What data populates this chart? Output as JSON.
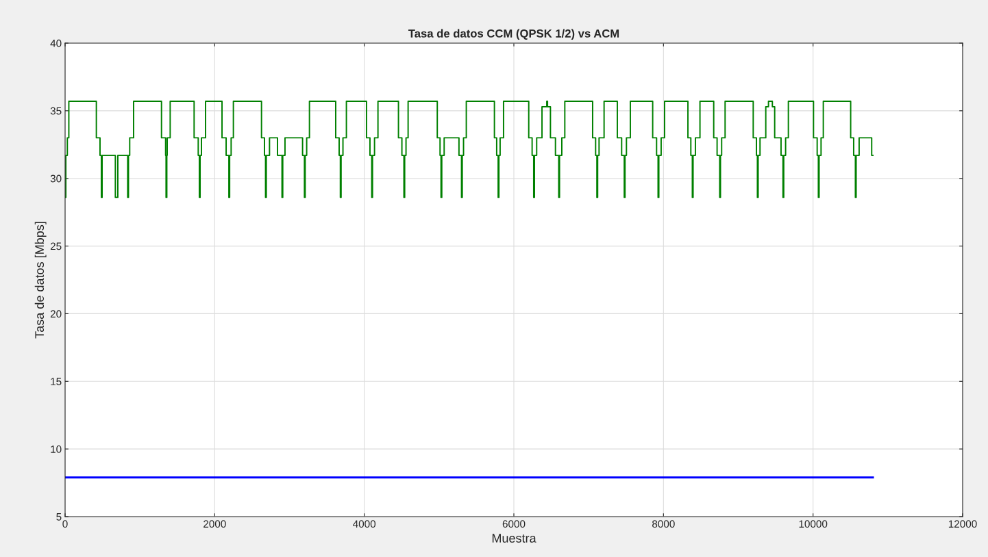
{
  "chart_data": {
    "type": "line",
    "title": "Tasa de datos CCM (QPSK 1/2) vs ACM",
    "xlabel": "Muestra",
    "ylabel": "Tasa de datos [Mbps]",
    "xlim": [
      0,
      12000
    ],
    "xticks": [
      0,
      2000,
      4000,
      6000,
      8000,
      10000,
      12000
    ],
    "ylim": [
      5,
      40
    ],
    "yticks": [
      5,
      10,
      15,
      20,
      25,
      30,
      35,
      40
    ],
    "grid": true,
    "series": [
      {
        "type": "step",
        "color": "#008000",
        "x": [
          0,
          10,
          30,
          50,
          418,
          467,
          485,
          495,
          672,
          705,
          837,
          847,
          864,
          916,
          1289,
          1344,
          1350,
          1360,
          1365,
          1405,
          1725,
          1780,
          1795,
          1805,
          1823,
          1878,
          2098,
          2153,
          2190,
          2200,
          2220,
          2250,
          2626,
          2666,
          2680,
          2690,
          2733,
          2840,
          2900,
          2910,
          2940,
          3175,
          3200,
          3210,
          3230,
          3267,
          3618,
          3664,
          3680,
          3690,
          3715,
          3761,
          4030,
          4076,
          4100,
          4110,
          4137,
          4183,
          4457,
          4503,
          4530,
          4540,
          4558,
          4586,
          4976,
          5013,
          5026,
          5036,
          5068,
          5266,
          5300,
          5310,
          5327,
          5364,
          5740,
          5770,
          5790,
          5800,
          5816,
          5862,
          6199,
          6244,
          6265,
          6275,
          6305,
          6376,
          6440,
          6450,
          6489,
          6556,
          6600,
          6610,
          6641,
          6681,
          7053,
          7093,
          7110,
          7120,
          7139,
          7206,
          7383,
          7441,
          7476,
          7486,
          7505,
          7557,
          7856,
          7908,
          7928,
          7938,
          7969,
          8015,
          8327,
          8366,
          8386,
          8396,
          8427,
          8488,
          8672,
          8717,
          8752,
          8762,
          8778,
          8824,
          9200,
          9243,
          9256,
          9266,
          9291,
          9368,
          9404,
          9456,
          9487,
          9572,
          9598,
          9608,
          9633,
          9670,
          10006,
          10055,
          10071,
          10081,
          10107,
          10137,
          10503,
          10543,
          10566,
          10576,
          10616,
          10784,
          10800
        ],
        "values": [
          28.6,
          31.7,
          33,
          35.7,
          33,
          31.7,
          28.6,
          31.7,
          28.6,
          31.7,
          28.6,
          31.7,
          33,
          35.7,
          33,
          31.7,
          28.6,
          31.7,
          33,
          35.7,
          33,
          31.7,
          28.6,
          31.7,
          33,
          35.7,
          33,
          31.7,
          28.6,
          31.7,
          33,
          35.7,
          33,
          31.7,
          28.6,
          31.7,
          33,
          31.7,
          28.6,
          31.7,
          33,
          31.7,
          28.6,
          31.7,
          33,
          35.7,
          33,
          31.7,
          28.6,
          31.7,
          33,
          35.7,
          33,
          31.7,
          28.6,
          31.7,
          33,
          35.7,
          33,
          31.7,
          28.6,
          31.7,
          33,
          35.7,
          33,
          31.7,
          28.6,
          31.7,
          33,
          31.7,
          28.6,
          31.7,
          33,
          35.7,
          33,
          31.7,
          28.6,
          31.7,
          33,
          35.7,
          33,
          31.7,
          28.6,
          31.7,
          33,
          35.3,
          35.7,
          35.3,
          33,
          31.7,
          28.6,
          31.7,
          33,
          35.7,
          33,
          31.7,
          28.6,
          31.7,
          33,
          35.7,
          33,
          31.7,
          28.6,
          31.7,
          33,
          35.7,
          33,
          31.7,
          28.6,
          31.7,
          33,
          35.7,
          33,
          31.7,
          28.6,
          31.7,
          33,
          35.7,
          33,
          31.7,
          28.6,
          31.7,
          33,
          35.7,
          33,
          31.7,
          28.6,
          31.7,
          33,
          35.3,
          35.7,
          35.3,
          33,
          31.7,
          28.6,
          31.7,
          33,
          35.7,
          33,
          31.7,
          28.6,
          31.7,
          33,
          35.7,
          33,
          31.7,
          28.6,
          31.7,
          33,
          31.7,
          31.7
        ]
      },
      {
        "color": "#0000ff",
        "x": [
          0,
          10800
        ],
        "values": [
          7.9,
          7.9
        ]
      }
    ]
  }
}
